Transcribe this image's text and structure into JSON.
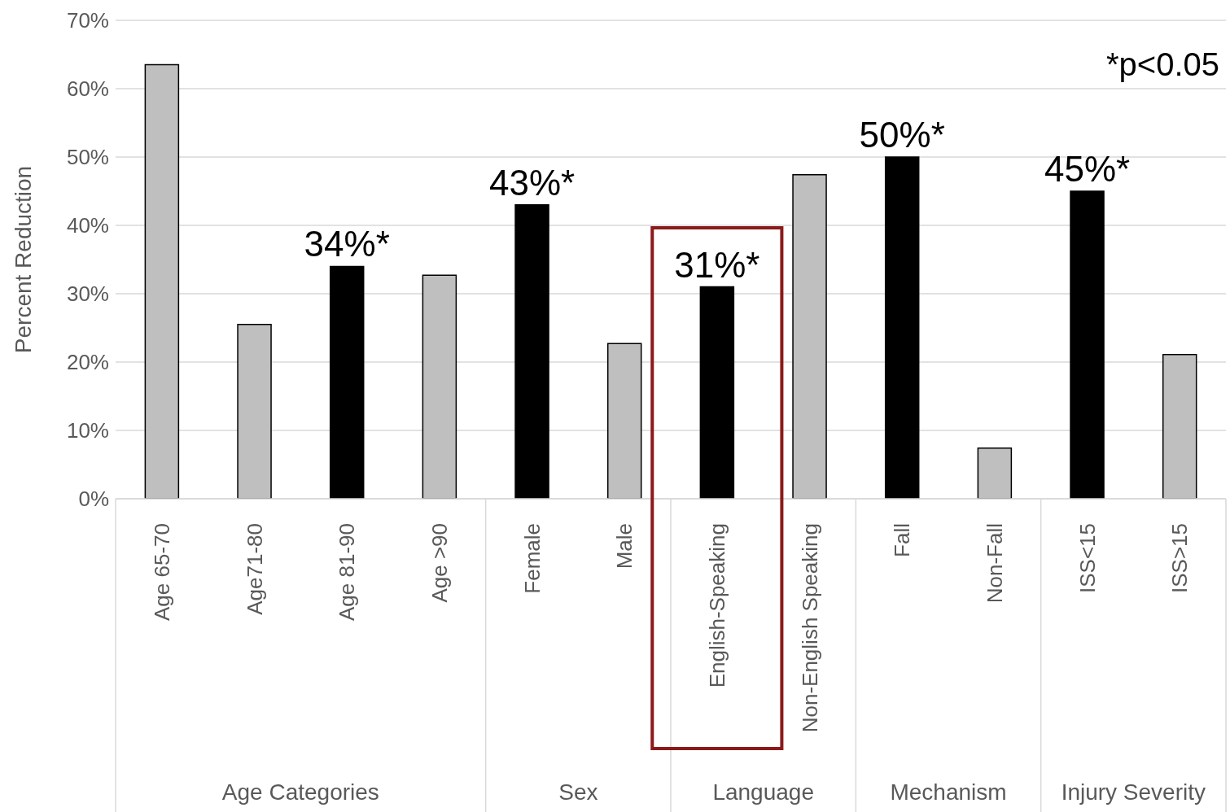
{
  "chart_data": {
    "type": "bar",
    "categories": [
      "Age 65-70",
      "Age71-80",
      "Age 81-90",
      "Age >90",
      "Female",
      "Male",
      "English-Speaking",
      "Non-English Speaking",
      "Fall",
      "Non-Fall",
      "ISS<15",
      "ISS>15"
    ],
    "values": [
      63.5,
      25.5,
      34,
      32.7,
      43,
      22.7,
      31,
      47.4,
      50,
      7.4,
      45,
      21.1
    ],
    "colors": [
      "#bfbfbf",
      "#bfbfbf",
      "#000000",
      "#bfbfbf",
      "#000000",
      "#bfbfbf",
      "#000000",
      "#bfbfbf",
      "#000000",
      "#bfbfbf",
      "#000000",
      "#bfbfbf"
    ],
    "value_labels": [
      null,
      null,
      "34%*",
      null,
      "43%*",
      null,
      "31%*",
      null,
      "50%*",
      null,
      "45%*",
      null
    ],
    "ylabel": "Percent Reduction",
    "ylim": [
      0,
      70
    ],
    "yticks": [
      {
        "value": 0,
        "label": "0%"
      },
      {
        "value": 10,
        "label": "10%"
      },
      {
        "value": 20,
        "label": "20%"
      },
      {
        "value": 30,
        "label": "30%"
      },
      {
        "value": 40,
        "label": "40%"
      },
      {
        "value": 50,
        "label": "50%"
      },
      {
        "value": 60,
        "label": "60%"
      },
      {
        "value": 70,
        "label": "70%"
      }
    ],
    "grid": "y",
    "legend": false,
    "annotations": [
      "*p<0.05",
      "Age Categories",
      "Sex",
      "Language",
      "Mechanism",
      "Injury Severity"
    ]
  }
}
